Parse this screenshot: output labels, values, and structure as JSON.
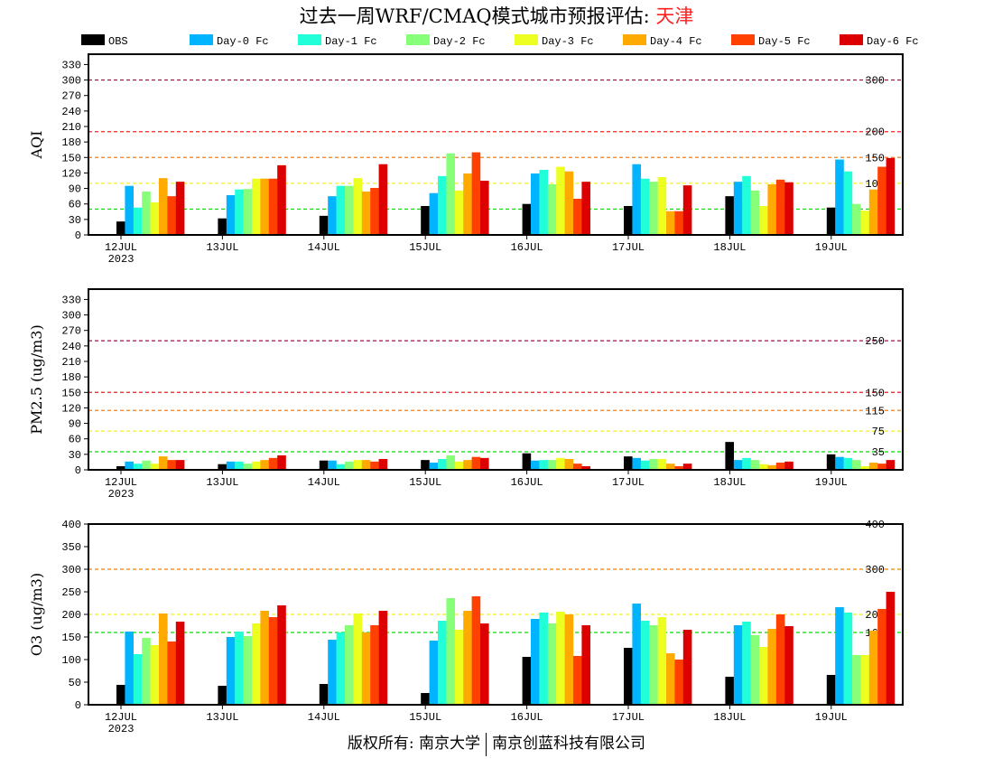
{
  "title": {
    "prefix": "过去一周WRF/CMAQ模式城市预报评估: ",
    "city": "天津"
  },
  "footer": {
    "left": "版权所有: 南京大学",
    "right": "南京创蓝科技有限公司"
  },
  "chart_data": {
    "type": "bar",
    "categories": [
      "12JUL",
      "13JUL",
      "14JUL",
      "15JUL",
      "16JUL",
      "17JUL",
      "18JUL",
      "19JUL"
    ],
    "year_label": "2023",
    "legend": {
      "placement": "top",
      "entries": [
        "OBS",
        "Day-0 Fc",
        "Day-1 Fc",
        "Day-2 Fc",
        "Day-3 Fc",
        "Day-4 Fc",
        "Day-5 Fc",
        "Day-6 Fc"
      ]
    },
    "series_colors": [
      "#000000",
      "#00b4ff",
      "#20ffd8",
      "#88ff78",
      "#ecff20",
      "#ffaa00",
      "#ff4000",
      "#dd0000"
    ],
    "panels": [
      {
        "ylabel": "AQI",
        "ylim": [
          0,
          350
        ],
        "yticks": [
          0,
          30,
          60,
          90,
          120,
          150,
          180,
          210,
          240,
          270,
          300,
          330
        ],
        "thresholds": [
          {
            "value": 50,
            "label": "50",
            "color": "#00dd00"
          },
          {
            "value": 100,
            "label": "100",
            "color": "#f0f020"
          },
          {
            "value": 150,
            "label": "150",
            "color": "#f08020"
          },
          {
            "value": 200,
            "label": "200",
            "color": "#ff2020"
          },
          {
            "value": 300,
            "label": "300",
            "color": "#901040"
          }
        ],
        "series": [
          {
            "name": "OBS",
            "values": [
              26,
              32,
              37,
              56,
              60,
              56,
              75,
              53
            ]
          },
          {
            "name": "Day-0 Fc",
            "values": [
              95,
              77,
              75,
              81,
              119,
              137,
              103,
              146
            ]
          },
          {
            "name": "Day-1 Fc",
            "values": [
              53,
              88,
              95,
              114,
              126,
              109,
              114,
              123
            ]
          },
          {
            "name": "Day-2 Fc",
            "values": [
              84,
              89,
              95,
              158,
              98,
              103,
              86,
              60
            ]
          },
          {
            "name": "Day-3 Fc",
            "values": [
              63,
              109,
              110,
              86,
              132,
              112,
              56,
              47
            ]
          },
          {
            "name": "Day-4 Fc",
            "values": [
              110,
              109,
              84,
              119,
              123,
              46,
              98,
              88
            ]
          },
          {
            "name": "Day-5 Fc",
            "values": [
              75,
              109,
              91,
              160,
              70,
              46,
              107,
              132
            ]
          },
          {
            "name": "Day-6 Fc",
            "values": [
              103,
              135,
              137,
              105,
              103,
              96,
              102,
              149
            ]
          }
        ]
      },
      {
        "ylabel": "PM2.5 (ug/m3)",
        "ylim": [
          0,
          350
        ],
        "yticks": [
          0,
          30,
          60,
          90,
          120,
          150,
          180,
          210,
          240,
          270,
          300,
          330
        ],
        "thresholds": [
          {
            "value": 35,
            "label": "35",
            "color": "#00dd00"
          },
          {
            "value": 75,
            "label": "75",
            "color": "#f0f020"
          },
          {
            "value": 115,
            "label": "115",
            "color": "#f08020"
          },
          {
            "value": 150,
            "label": "150",
            "color": "#e02020"
          },
          {
            "value": 250,
            "label": "250",
            "color": "#a01050"
          }
        ],
        "series": [
          {
            "name": "OBS",
            "values": [
              7,
              11,
              18,
              19,
              32,
              26,
              54,
              30
            ]
          },
          {
            "name": "Day-0 Fc",
            "values": [
              16,
              16,
              18,
              14,
              18,
              23,
              19,
              25
            ]
          },
          {
            "name": "Day-1 Fc",
            "values": [
              12,
              16,
              11,
              21,
              19,
              18,
              23,
              23
            ]
          },
          {
            "name": "Day-2 Fc",
            "values": [
              18,
              12,
              16,
              28,
              19,
              21,
              19,
              19
            ]
          },
          {
            "name": "Day-3 Fc",
            "values": [
              12,
              16,
              19,
              16,
              23,
              21,
              11,
              7
            ]
          },
          {
            "name": "Day-4 Fc",
            "values": [
              26,
              19,
              19,
              19,
              21,
              12,
              9,
              14
            ]
          },
          {
            "name": "Day-5 Fc",
            "values": [
              19,
              23,
              16,
              25,
              12,
              7,
              14,
              12
            ]
          },
          {
            "name": "Day-6 Fc",
            "values": [
              19,
              28,
              21,
              23,
              7,
              12,
              16,
              19
            ]
          }
        ]
      },
      {
        "ylabel": "O3 (ug/m3)",
        "ylim": [
          0,
          400
        ],
        "yticks": [
          0,
          50,
          100,
          150,
          200,
          250,
          300,
          350,
          400
        ],
        "thresholds": [
          {
            "value": 160,
            "label": "160",
            "color": "#00dd00"
          },
          {
            "value": 200,
            "label": "200",
            "color": "#f0f020"
          },
          {
            "value": 300,
            "label": "300",
            "color": "#f08000"
          },
          {
            "value": 400,
            "label": "400",
            "color": "#ff2020"
          }
        ],
        "series": [
          {
            "name": "OBS",
            "values": [
              44,
              42,
              46,
              26,
              106,
              126,
              62,
              66
            ]
          },
          {
            "name": "Day-0 Fc",
            "values": [
              162,
              150,
              144,
              142,
              190,
              224,
              176,
              216
            ]
          },
          {
            "name": "Day-1 Fc",
            "values": [
              112,
              162,
              160,
              186,
              204,
              186,
              184,
              204
            ]
          },
          {
            "name": "Day-2 Fc",
            "values": [
              148,
              152,
              176,
              236,
              180,
              176,
              154,
              110
            ]
          },
          {
            "name": "Day-3 Fc",
            "values": [
              132,
              180,
              202,
              166,
              206,
              194,
              128,
              110
            ]
          },
          {
            "name": "Day-4 Fc",
            "values": [
              202,
              208,
              160,
              208,
              200,
              114,
              168,
              164
            ]
          },
          {
            "name": "Day-5 Fc",
            "values": [
              140,
              194,
              176,
              240,
              108,
              100,
              200,
              212
            ]
          },
          {
            "name": "Day-6 Fc",
            "values": [
              184,
              220,
              208,
              180,
              176,
              166,
              174,
              250
            ]
          }
        ]
      }
    ]
  }
}
